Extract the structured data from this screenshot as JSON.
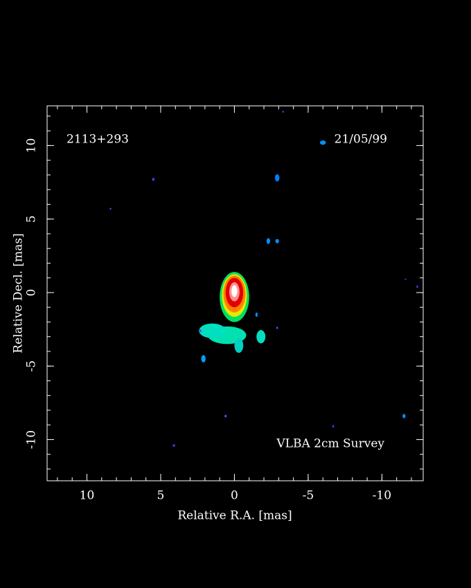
{
  "chart_data": {
    "type": "image",
    "label_left": "2113+293",
    "label_right": "21/05/99",
    "label_bottom": "VLBA 2cm Survey",
    "xlabel": "Relative R.A. [mas]",
    "ylabel": "Relative Decl. [mas]",
    "xlim": [
      12.7,
      -12.8
    ],
    "ylim": [
      -12.8,
      12.7
    ],
    "xticks": [
      10,
      5,
      0,
      -5,
      -10
    ],
    "yticks": [
      -10,
      -5,
      0,
      5,
      10
    ],
    "xminorticks": [
      12,
      11,
      10,
      9,
      8,
      7,
      6,
      5,
      4,
      3,
      2,
      1,
      0,
      -1,
      -2,
      -3,
      -4,
      -5,
      -6,
      -7,
      -8,
      -9,
      -10,
      -11,
      -12
    ],
    "yminorticks": [
      -12,
      -11,
      -10,
      -9,
      -8,
      -7,
      -6,
      -5,
      -4,
      -3,
      -2,
      -1,
      0,
      1,
      2,
      3,
      4,
      5,
      6,
      7,
      8,
      9,
      10,
      11,
      12
    ],
    "features": {
      "x": [
        0.5,
        1.5,
        -0.3,
        -1.8,
        0,
        0,
        0,
        0,
        0,
        0,
        2.1,
        -2.3,
        -2.9,
        -2.9,
        -6.0,
        5.5,
        8.4,
        4.1,
        0.6,
        -6.7,
        -11.5,
        -12.4,
        -11.6,
        -3.3,
        -1.5,
        -2.9,
        2.3
      ],
      "y": [
        -2.9,
        -2.6,
        -3.6,
        -3.0,
        -0.3,
        -0.2,
        -0.1,
        0,
        0.05,
        0.1,
        -4.5,
        3.5,
        3.5,
        7.8,
        10.2,
        7.7,
        5.7,
        -10.4,
        -8.4,
        -9.1,
        -8.4,
        0.4,
        0.9,
        12.3,
        -1.5,
        -2.4,
        -2.6
      ],
      "rx": [
        1.3,
        0.9,
        0.3,
        0.3,
        1.0,
        0.85,
        0.75,
        0.6,
        0.35,
        0.2,
        0.15,
        0.12,
        0.12,
        0.15,
        0.2,
        0.08,
        0.06,
        0.08,
        0.08,
        0.06,
        0.1,
        0.06,
        0.05,
        0.06,
        0.08,
        0.06,
        0.06
      ],
      "ry": [
        0.6,
        0.5,
        0.5,
        0.45,
        1.7,
        1.45,
        1.25,
        1.0,
        0.65,
        0.4,
        0.25,
        0.2,
        0.15,
        0.25,
        0.15,
        0.1,
        0.06,
        0.08,
        0.08,
        0.08,
        0.15,
        0.08,
        0.05,
        0.06,
        0.15,
        0.08,
        0.1
      ],
      "colors": [
        "#00e0b0",
        "#00e0c0",
        "#00d0c0",
        "#00e0c0",
        "#00e060",
        "#e8e800",
        "#ff8000",
        "#e00000",
        "#ff9090",
        "#ffffff",
        "#00a0ff",
        "#0090ff",
        "#0090ff",
        "#0080ff",
        "#0090ff",
        "#4040ff",
        "#4040ff",
        "#4040ff",
        "#6040ff",
        "#4040ff",
        "#0090ff",
        "#4040ff",
        "#4040ff",
        "#4040ff",
        "#0090ff",
        "#6040ff",
        "#6040ff"
      ]
    }
  }
}
